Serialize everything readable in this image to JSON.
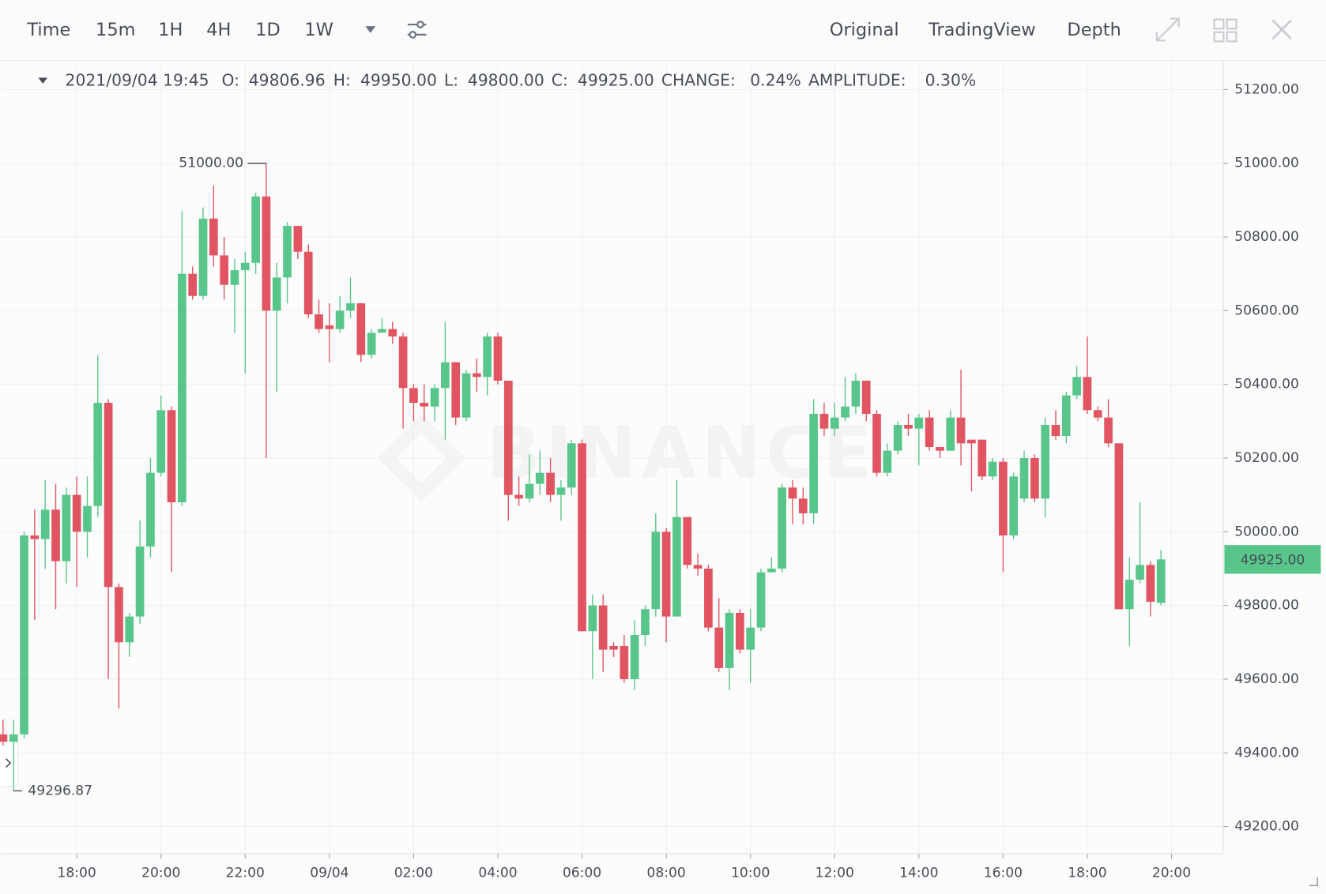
{
  "toolbar": {
    "intervals": [
      "Time",
      "15m",
      "1H",
      "4H",
      "1D",
      "1W"
    ],
    "active_interval": "15m",
    "views": [
      "Original",
      "TradingView",
      "Depth"
    ],
    "active_view": "Original"
  },
  "info": {
    "datetime": "2021/09/04 19:45",
    "fields": [
      {
        "label": "O:",
        "value": "49806.96"
      },
      {
        "label": "H:",
        "value": "49950.00"
      },
      {
        "label": "L:",
        "value": "49800.00"
      },
      {
        "label": "C:",
        "value": "49925.00"
      },
      {
        "label": "CHANGE:",
        "value": "0.24%"
      },
      {
        "label": "AMPLITUDE:",
        "value": "0.30%"
      }
    ]
  },
  "watermark": "BINANCE",
  "chart_data": {
    "type": "candlestick",
    "x": [
      "2021/09/03 16:15",
      "2021/09/03 16:30",
      "2021/09/03 16:45",
      "2021/09/03 17:00",
      "2021/09/03 17:15",
      "2021/09/03 17:30",
      "2021/09/03 17:45",
      "2021/09/03 18:00",
      "2021/09/03 18:15",
      "2021/09/03 18:30",
      "2021/09/03 18:45",
      "2021/09/03 19:00",
      "2021/09/03 19:15",
      "2021/09/03 19:30",
      "2021/09/03 19:45",
      "2021/09/03 20:00",
      "2021/09/03 20:15",
      "2021/09/03 20:30",
      "2021/09/03 20:45",
      "2021/09/03 21:00",
      "2021/09/03 21:15",
      "2021/09/03 21:30",
      "2021/09/03 21:45",
      "2021/09/03 22:00",
      "2021/09/03 22:15",
      "2021/09/03 22:30",
      "2021/09/03 22:45",
      "2021/09/03 23:00",
      "2021/09/03 23:15",
      "2021/09/03 23:30",
      "2021/09/03 23:45",
      "2021/09/04 00:00",
      "2021/09/04 00:15",
      "2021/09/04 00:30",
      "2021/09/04 00:45",
      "2021/09/04 01:00",
      "2021/09/04 01:15",
      "2021/09/04 01:30",
      "2021/09/04 01:45",
      "2021/09/04 02:00",
      "2021/09/04 02:15",
      "2021/09/04 02:30",
      "2021/09/04 02:45",
      "2021/09/04 03:00",
      "2021/09/04 03:15",
      "2021/09/04 03:30",
      "2021/09/04 03:45",
      "2021/09/04 04:00",
      "2021/09/04 04:15",
      "2021/09/04 04:30",
      "2021/09/04 04:45",
      "2021/09/04 05:00",
      "2021/09/04 05:15",
      "2021/09/04 05:30",
      "2021/09/04 05:45",
      "2021/09/04 06:00",
      "2021/09/04 06:15",
      "2021/09/04 06:30",
      "2021/09/04 06:45",
      "2021/09/04 07:00",
      "2021/09/04 07:15",
      "2021/09/04 07:30",
      "2021/09/04 07:45",
      "2021/09/04 08:00",
      "2021/09/04 08:15",
      "2021/09/04 08:30",
      "2021/09/04 08:45",
      "2021/09/04 09:00",
      "2021/09/04 09:15",
      "2021/09/04 09:30",
      "2021/09/04 09:45",
      "2021/09/04 10:00",
      "2021/09/04 10:15",
      "2021/09/04 10:30",
      "2021/09/04 10:45",
      "2021/09/04 11:00",
      "2021/09/04 11:15",
      "2021/09/04 11:30",
      "2021/09/04 11:45",
      "2021/09/04 12:00",
      "2021/09/04 12:15",
      "2021/09/04 12:30",
      "2021/09/04 12:45",
      "2021/09/04 13:00",
      "2021/09/04 13:15",
      "2021/09/04 13:30",
      "2021/09/04 13:45",
      "2021/09/04 14:00",
      "2021/09/04 14:15",
      "2021/09/04 14:30",
      "2021/09/04 14:45",
      "2021/09/04 15:00",
      "2021/09/04 15:15",
      "2021/09/04 15:30",
      "2021/09/04 15:45",
      "2021/09/04 16:00",
      "2021/09/04 16:15",
      "2021/09/04 16:30",
      "2021/09/04 16:45",
      "2021/09/04 17:00",
      "2021/09/04 17:15",
      "2021/09/04 17:30",
      "2021/09/04 17:45",
      "2021/09/04 18:00",
      "2021/09/04 18:15",
      "2021/09/04 18:30",
      "2021/09/04 18:45",
      "2021/09/04 19:00",
      "2021/09/04 19:15",
      "2021/09/04 19:30",
      "2021/09/04 19:45"
    ],
    "open": [
      49450,
      49430,
      49450,
      49990,
      49980,
      50060,
      49920,
      50100,
      50000,
      50070,
      50350,
      49850,
      49700,
      49770,
      49960,
      50160,
      50330,
      50080,
      50700,
      50640,
      50850,
      50750,
      50670,
      50710,
      50730,
      50910,
      50600,
      50690,
      50830,
      50760,
      50590,
      50560,
      50550,
      50600,
      50620,
      50480,
      50540,
      50550,
      50530,
      50390,
      50350,
      50340,
      50390,
      50460,
      50310,
      50430,
      50420,
      50530,
      50410,
      50100,
      50090,
      50130,
      50160,
      50100,
      50120,
      50240,
      49730,
      49800,
      49690,
      49690,
      49600,
      49720,
      49790,
      50000,
      49770,
      50040,
      49910,
      49900,
      49740,
      49630,
      49780,
      49680,
      49740,
      49890,
      49900,
      50120,
      50090,
      50050,
      50320,
      50280,
      50310,
      50340,
      50410,
      50320,
      50160,
      50220,
      50290,
      50280,
      50310,
      50230,
      50220,
      50310,
      50250,
      50250,
      50150,
      50190,
      49990,
      50090,
      50200,
      50090,
      50290,
      50260,
      50370,
      50420,
      50330,
      50310,
      50240,
      49790,
      49870,
      49910,
      49806.96
    ],
    "high": [
      49490,
      49490,
      50000,
      50060,
      50140,
      50130,
      50120,
      50150,
      50150,
      50480,
      50360,
      49860,
      49780,
      50030,
      50200,
      50370,
      50340,
      50870,
      50720,
      50880,
      50940,
      50800,
      50740,
      50760,
      50920,
      51000,
      50730,
      50840,
      50830,
      50780,
      50630,
      50620,
      50640,
      50690,
      50620,
      50550,
      50580,
      50570,
      50540,
      50400,
      50400,
      50400,
      50570,
      50460,
      50440,
      50470,
      50540,
      50540,
      50410,
      50150,
      50210,
      50220,
      50200,
      50140,
      50250,
      50250,
      49830,
      49830,
      49700,
      49720,
      49760,
      49800,
      50050,
      50010,
      50140,
      50040,
      49940,
      49910,
      49820,
      49790,
      49790,
      49790,
      49900,
      49930,
      50130,
      50140,
      50120,
      50360,
      50350,
      50350,
      50420,
      50430,
      50410,
      50330,
      50240,
      50300,
      50320,
      50320,
      50330,
      50230,
      50330,
      50440,
      50250,
      50250,
      50200,
      50200,
      50160,
      50220,
      50210,
      50310,
      50330,
      50380,
      50450,
      50530,
      50340,
      50360,
      50240,
      49930,
      50080,
      49920,
      49950
    ],
    "low": [
      49420,
      49296.87,
      49440,
      49760,
      49900,
      49790,
      49860,
      49850,
      49930,
      50040,
      49600,
      49520,
      49660,
      49750,
      49930,
      50150,
      49890,
      50070,
      50630,
      50630,
      50720,
      50630,
      50540,
      50430,
      50700,
      50200,
      50380,
      50620,
      50740,
      50580,
      50540,
      50460,
      50540,
      50580,
      50460,
      50470,
      50540,
      50510,
      50280,
      50300,
      50300,
      50300,
      50250,
      50290,
      50300,
      50380,
      50370,
      50400,
      50030,
      50070,
      50080,
      50100,
      50080,
      50030,
      50100,
      49730,
      49600,
      49620,
      49660,
      49590,
      49570,
      49690,
      49770,
      49700,
      49770,
      49900,
      49880,
      49730,
      49620,
      49570,
      49670,
      49590,
      49730,
      49890,
      49890,
      50020,
      50020,
      50020,
      50260,
      50260,
      50300,
      50320,
      50300,
      50150,
      50150,
      50210,
      50260,
      50180,
      50220,
      50200,
      50220,
      50180,
      50110,
      50140,
      50140,
      49890,
      49980,
      50080,
      50080,
      50040,
      50250,
      50240,
      50360,
      50320,
      50300,
      50230,
      49790,
      49690,
      49860,
      49770,
      49800
    ],
    "close": [
      49430,
      49450,
      49990,
      49980,
      50060,
      49920,
      50100,
      50000,
      50070,
      50350,
      49850,
      49700,
      49770,
      49960,
      50160,
      50330,
      50080,
      50700,
      50640,
      50850,
      50750,
      50670,
      50710,
      50730,
      50910,
      50600,
      50690,
      50830,
      50760,
      50590,
      50550,
      50550,
      50600,
      50620,
      50480,
      50540,
      50550,
      50530,
      50390,
      50350,
      50340,
      50390,
      50460,
      50310,
      50430,
      50420,
      50530,
      50410,
      50100,
      50090,
      50130,
      50160,
      50100,
      50120,
      50240,
      49730,
      49800,
      49680,
      49680,
      49600,
      49720,
      49790,
      50000,
      49770,
      50040,
      49910,
      49900,
      49740,
      49630,
      49780,
      49680,
      49740,
      49890,
      49900,
      50120,
      50090,
      50050,
      50320,
      50280,
      50310,
      50340,
      50410,
      50320,
      50160,
      50220,
      50290,
      50280,
      50310,
      50230,
      50220,
      50310,
      50240,
      50240,
      50150,
      50190,
      49990,
      50150,
      50200,
      50090,
      50290,
      50260,
      50370,
      50420,
      50330,
      50310,
      50240,
      49790,
      49870,
      49910,
      49810,
      49925
    ],
    "up_color": "#58c68a",
    "down_color": "#e15562",
    "ylim": [
      49127,
      51278
    ],
    "yticks": [
      {
        "value": 49200,
        "label": "49200.00"
      },
      {
        "value": 49400,
        "label": "49400.00"
      },
      {
        "value": 49600,
        "label": "49600.00"
      },
      {
        "value": 49800,
        "label": "49800.00"
      },
      {
        "value": 50000,
        "label": "50000.00"
      },
      {
        "value": 50200,
        "label": "50200.00"
      },
      {
        "value": 50400,
        "label": "50400.00"
      },
      {
        "value": 50600,
        "label": "50600.00"
      },
      {
        "value": 50800,
        "label": "50800.00"
      },
      {
        "value": 51000,
        "label": "51000.00"
      },
      {
        "value": 51200,
        "label": "51200.00"
      }
    ],
    "xticks": [
      {
        "value": "2021/09/03 18:00",
        "label": "18:00"
      },
      {
        "value": "2021/09/03 20:00",
        "label": "20:00"
      },
      {
        "value": "2021/09/03 22:00",
        "label": "22:00"
      },
      {
        "value": "2021/09/04 00:00",
        "label": "09/04"
      },
      {
        "value": "2021/09/04 02:00",
        "label": "02:00"
      },
      {
        "value": "2021/09/04 04:00",
        "label": "04:00"
      },
      {
        "value": "2021/09/04 06:00",
        "label": "06:00"
      },
      {
        "value": "2021/09/04 08:00",
        "label": "08:00"
      },
      {
        "value": "2021/09/04 10:00",
        "label": "10:00"
      },
      {
        "value": "2021/09/04 12:00",
        "label": "12:00"
      },
      {
        "value": "2021/09/04 14:00",
        "label": "14:00"
      },
      {
        "value": "2021/09/04 16:00",
        "label": "16:00"
      },
      {
        "value": "2021/09/04 18:00",
        "label": "18:00"
      },
      {
        "value": "2021/09/04 20:00",
        "label": "20:00"
      }
    ],
    "grid": true,
    "last_price": {
      "value": 49925,
      "label": "49925.00"
    },
    "max_marker": {
      "x": "2021/09/03 22:30",
      "value": 51000,
      "label": "51000.00"
    },
    "min_marker": {
      "x": "2021/09/03 16:30",
      "value": 49296.87,
      "label": "49296.87"
    }
  }
}
